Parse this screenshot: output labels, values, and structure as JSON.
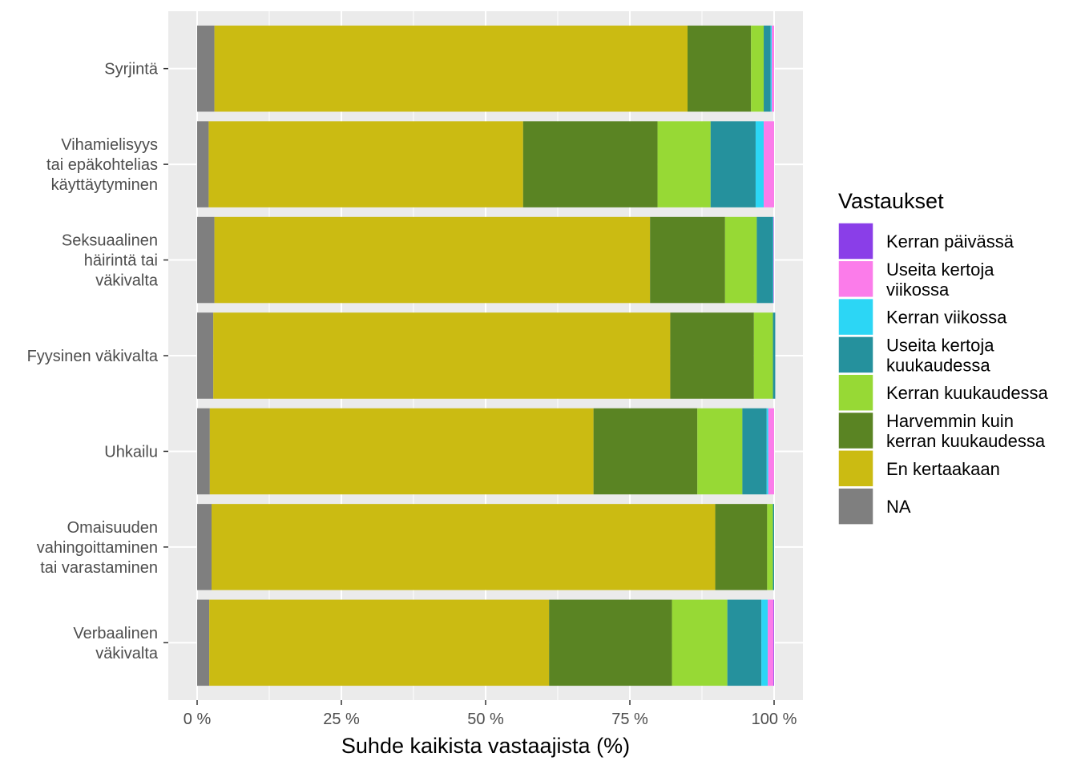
{
  "chart_data": {
    "type": "bar",
    "orientation": "horizontal",
    "stacked": true,
    "categories": [
      "Syrjintä",
      "Vihamielisyys tai epäkohtelias käyttäytyminen",
      "Seksuaalinen häirintä tai väkivalta",
      "Fyysinen väkivalta",
      "Uhkailu",
      "Omaisuuden vahingoittaminen tai varastaminen",
      "Verbaalinen väkivalta"
    ],
    "category_lines": [
      [
        "Syrjintä"
      ],
      [
        "Vihamielisyys",
        "tai epäkohtelias",
        "käyttäytyminen"
      ],
      [
        "Seksuaalinen",
        "häirintä tai",
        "väkivalta"
      ],
      [
        "Fyysinen väkivalta"
      ],
      [
        "Uhkailu"
      ],
      [
        "Omaisuuden",
        "vahingoittaminen",
        "tai varastaminen"
      ],
      [
        "Verbaalinen",
        "väkivalta"
      ]
    ],
    "series": [
      {
        "name": "NA",
        "color": "#7f7f7f",
        "values": [
          3.0,
          2.0,
          3.0,
          2.8,
          2.2,
          2.5,
          2.1
        ]
      },
      {
        "name": "En kertaakaan",
        "color": "#cbbb12",
        "values": [
          82.0,
          54.5,
          75.5,
          79.2,
          66.5,
          87.3,
          58.9
        ]
      },
      {
        "name": "Harvemmin kuin kerran kuukaudessa",
        "color": "#5a8423",
        "values": [
          11.0,
          23.3,
          13.0,
          14.5,
          18.0,
          9.0,
          21.3
        ]
      },
      {
        "name": "Kerran kuukaudessa",
        "color": "#97d935",
        "values": [
          2.2,
          9.2,
          5.5,
          3.3,
          7.8,
          1.0,
          9.6
        ]
      },
      {
        "name": "Useita kertoja kuukaudessa",
        "color": "#25919d",
        "values": [
          1.2,
          7.8,
          2.8,
          0.4,
          4.2,
          0.2,
          5.9
        ]
      },
      {
        "name": "Kerran viikossa",
        "color": "#2cd6f5",
        "values": [
          0.2,
          1.4,
          0.1,
          0.0,
          0.3,
          0.0,
          1.1
        ]
      },
      {
        "name": "Useita kertoja viikossa",
        "color": "#fb7cea",
        "values": [
          0.4,
          1.8,
          0.1,
          0.0,
          1.0,
          0.0,
          1.0
        ]
      },
      {
        "name": "Kerran päivässä",
        "color": "#8a3ee8",
        "values": [
          0.0,
          0.0,
          0.0,
          0.0,
          0.0,
          0.0,
          0.1
        ]
      }
    ],
    "xlabel": "Suhde kaikista vastaajista (%)",
    "ylabel": "",
    "xlim": [
      0,
      100
    ],
    "xticks": [
      0,
      25,
      50,
      75,
      100
    ],
    "xtick_labels": [
      "0 %",
      "25 %",
      "50 %",
      "75 %",
      "100 %"
    ],
    "grid": true,
    "legend": {
      "title": "Vastaukset",
      "placement": "right",
      "items": [
        {
          "label_lines": [
            "Kerran päivässä"
          ],
          "color": "#8a3ee8"
        },
        {
          "label_lines": [
            "Useita kertoja",
            "viikossa"
          ],
          "color": "#fb7cea"
        },
        {
          "label_lines": [
            "Kerran viikossa"
          ],
          "color": "#2cd6f5"
        },
        {
          "label_lines": [
            "Useita kertoja",
            "kuukaudessa"
          ],
          "color": "#25919d"
        },
        {
          "label_lines": [
            "Kerran kuukaudessa"
          ],
          "color": "#97d935"
        },
        {
          "label_lines": [
            "Harvemmin kuin",
            "kerran kuukaudessa"
          ],
          "color": "#5a8423"
        },
        {
          "label_lines": [
            "En kertaakaan"
          ],
          "color": "#cbbb12"
        },
        {
          "label_lines": [
            "NA"
          ],
          "color": "#7f7f7f"
        }
      ]
    }
  }
}
